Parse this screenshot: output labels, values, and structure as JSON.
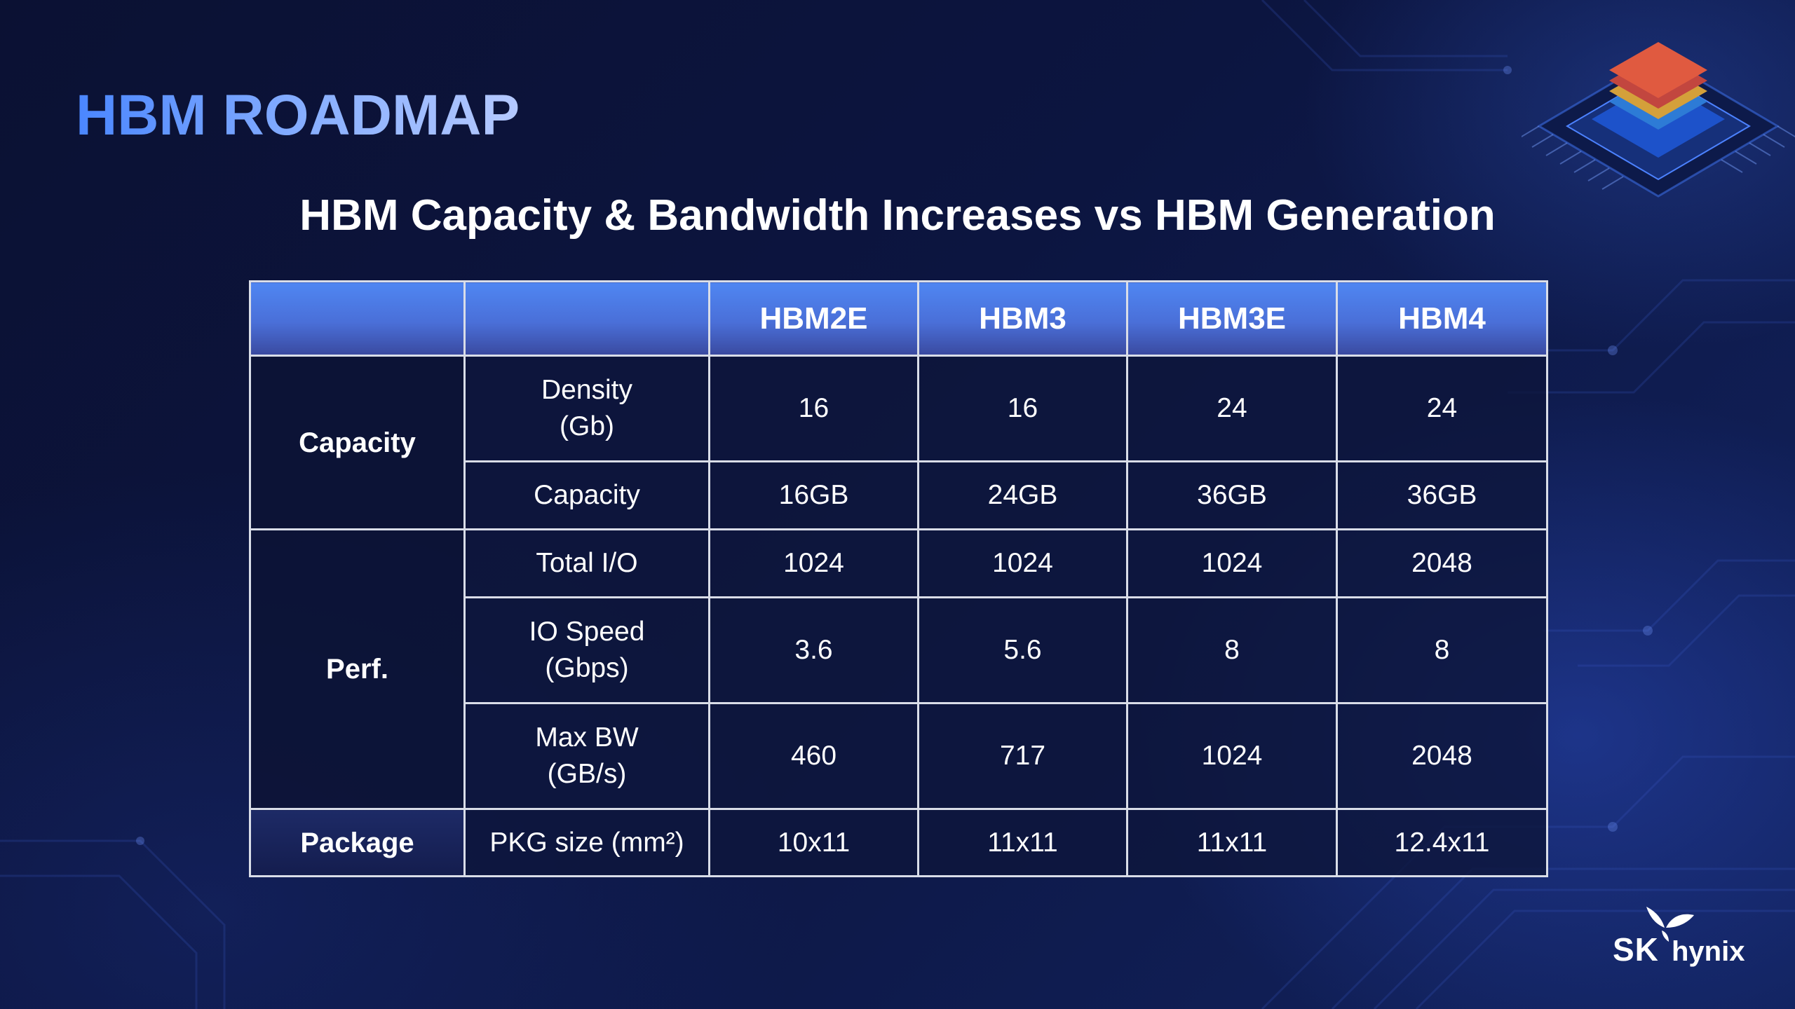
{
  "slide": {
    "title": "HBM ROADMAP",
    "subtitle": "HBM Capacity & Bandwidth Increases vs HBM Generation"
  },
  "table": {
    "columns": [
      "HBM2E",
      "HBM3",
      "HBM3E",
      "HBM4"
    ],
    "groups": {
      "capacity": "Capacity",
      "perf": "Perf.",
      "package": "Package"
    },
    "rows": [
      {
        "label_line1": "Density",
        "label_line2": "(Gb)",
        "values": [
          "16",
          "16",
          "24",
          "24"
        ]
      },
      {
        "label_line1": "Capacity",
        "label_line2": "",
        "values": [
          "16GB",
          "24GB",
          "36GB",
          "36GB"
        ]
      },
      {
        "label_line1": "Total I/O",
        "label_line2": "",
        "values": [
          "1024",
          "1024",
          "1024",
          "2048"
        ]
      },
      {
        "label_line1": "IO Speed",
        "label_line2": "(Gbps)",
        "values": [
          "3.6",
          "5.6",
          "8",
          "8"
        ]
      },
      {
        "label_line1": "Max BW",
        "label_line2": "(GB/s)",
        "values": [
          "460",
          "717",
          "1024",
          "2048"
        ]
      },
      {
        "label_line1": "PKG size (mm²)",
        "label_line2": "",
        "values": [
          "10x11",
          "11x11",
          "11x11",
          "12.4x11"
        ]
      }
    ]
  },
  "logo": {
    "brand_sk": "SK",
    "brand_hynix": "hynix",
    "mark_icon": "sk-butterfly-icon"
  },
  "colors": {
    "title_accent": "#4a86ff",
    "header_blue": "#4f86f2",
    "background": "#0b1133",
    "border": "#d9dde8"
  }
}
